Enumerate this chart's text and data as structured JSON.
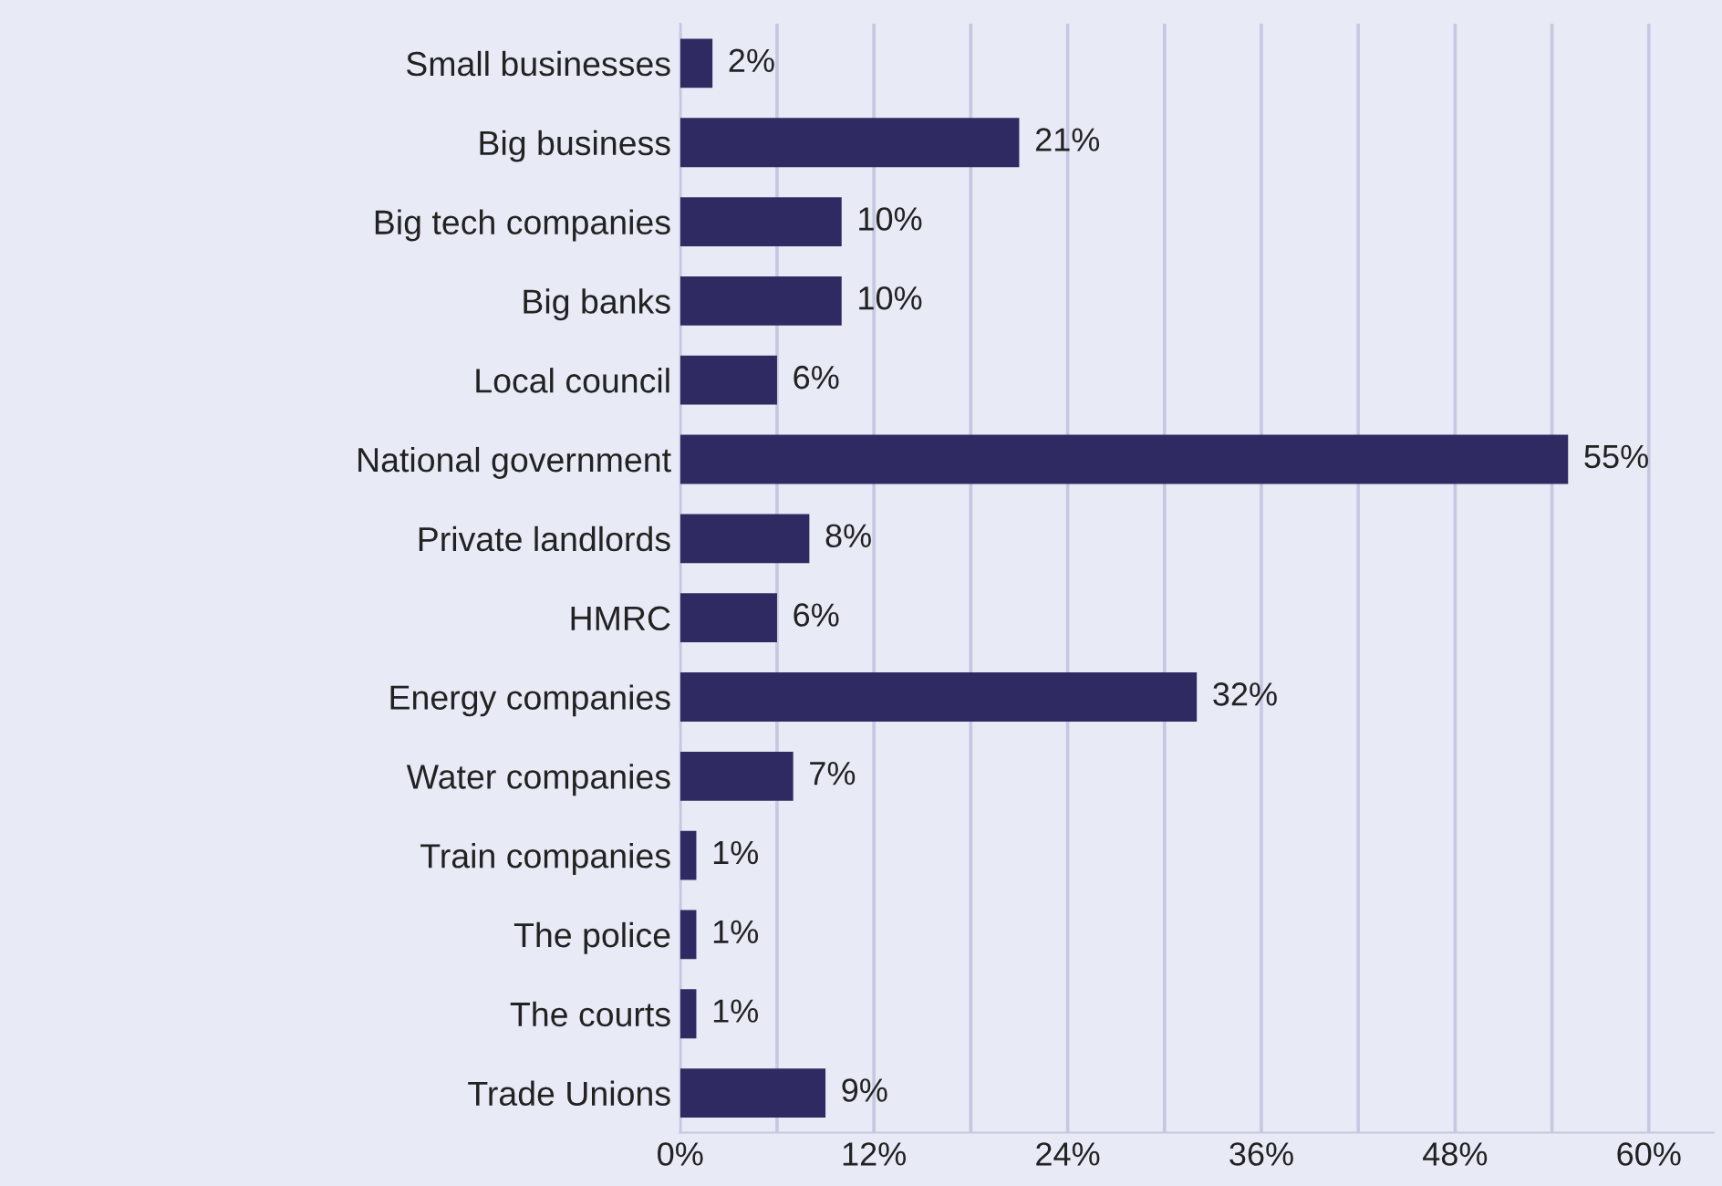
{
  "chart_data": {
    "type": "bar",
    "orientation": "horizontal",
    "categories": [
      "Small businesses",
      "Big business",
      "Big tech companies",
      "Big banks",
      "Local council",
      "National government",
      "Private landlords",
      "HMRC",
      "Energy companies",
      "Water companies",
      "Train companies",
      "The police",
      "The courts",
      "Trade Unions"
    ],
    "values": [
      2,
      21,
      10,
      10,
      6,
      55,
      8,
      6,
      32,
      7,
      1,
      1,
      1,
      9
    ],
    "value_labels": [
      "2%",
      "21%",
      "10%",
      "10%",
      "6%",
      "55%",
      "8%",
      "6%",
      "32%",
      "7%",
      "1%",
      "1%",
      "1%",
      "9%"
    ],
    "color": "#302a62",
    "xlim": [
      0,
      64
    ],
    "xticks": [
      {
        "value": 0,
        "label": "0%"
      },
      {
        "value": 6,
        "label": null
      },
      {
        "value": 12,
        "label": "12%"
      },
      {
        "value": 18,
        "label": null
      },
      {
        "value": 24,
        "label": "24%"
      },
      {
        "value": 30,
        "label": null
      },
      {
        "value": 36,
        "label": "36%"
      },
      {
        "value": 42,
        "label": null
      },
      {
        "value": 48,
        "label": "48%"
      },
      {
        "value": 54,
        "label": null
      },
      {
        "value": 60,
        "label": "60%"
      }
    ],
    "grid": "x"
  }
}
